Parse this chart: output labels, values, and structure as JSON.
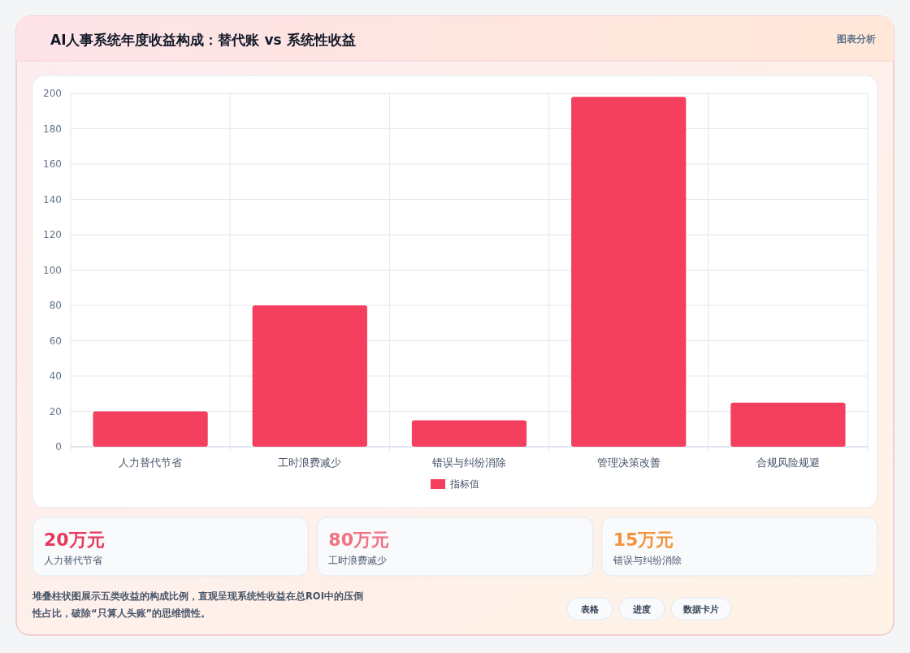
{
  "chart_data": [
    {
      "type": "bar",
      "title": "AI人事系统年度收益构成：替代账 vs 系统性收益",
      "categories": [
        "人力替代节省",
        "工时浪费减少",
        "错误与纠纷消除",
        "管理决策改善",
        "合规风险规避"
      ],
      "series": [
        {
          "name": "指标值",
          "color": "#f43f5e",
          "values": [
            20,
            80,
            15,
            198,
            25
          ]
        }
      ],
      "ylim": [
        0,
        200
      ],
      "yticks": [
        0,
        20,
        40,
        60,
        80,
        100,
        120,
        140,
        160,
        180,
        200
      ],
      "grid": true,
      "legend": "bottom"
    },
    {
      "type": "other",
      "annotations": [
        "20万元",
        "人力替代节省",
        "80万元",
        "工时浪费减少",
        "15万元",
        "错误与纠纷消除",
        "图表分析",
        "堆叠柱状图展示五类收益的构成比例，直观呈现系统性收益在总ROI中的压倒性占比，破除“只算人头账”的思维惯性。",
        "表格",
        "进度",
        "数据卡片"
      ]
    }
  ]
}
